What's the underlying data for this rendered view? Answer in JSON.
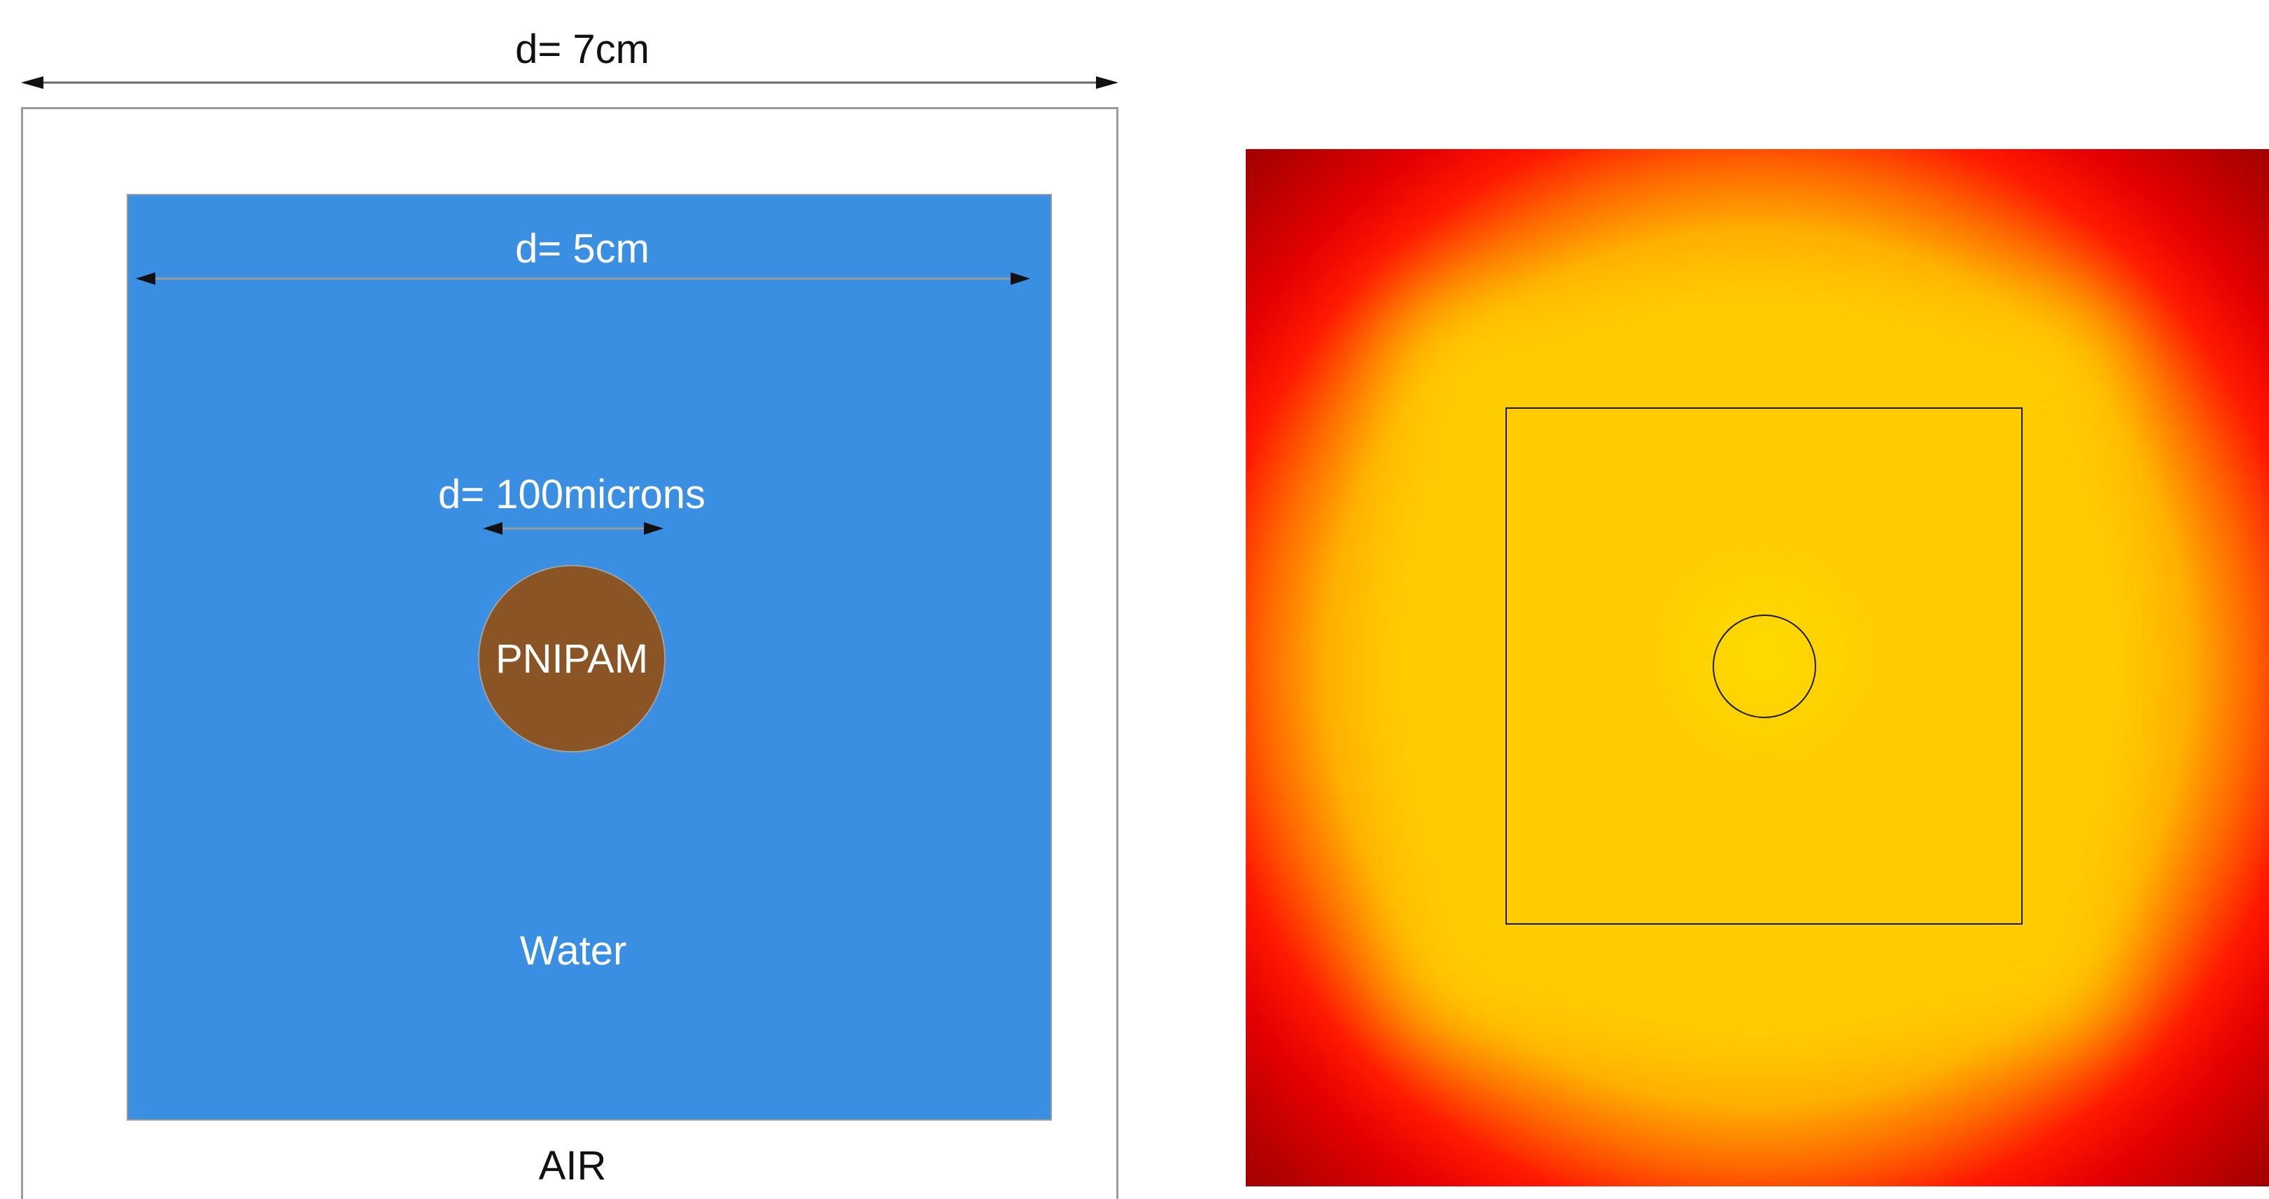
{
  "schematic": {
    "outer_domain_label": "d= 7cm",
    "outer_medium_label": "AIR",
    "water_domain_label": "d= 5cm",
    "water_medium_label": "Water",
    "particle_size_label": "d= 100microns",
    "particle_label": "PNIPAM"
  },
  "heatmap": {
    "colormap": [
      "#600000",
      "#b40000",
      "#ff1a00",
      "#ff6a00",
      "#ffae00",
      "#ffd000"
    ]
  },
  "colors": {
    "water": "#3b8fe2",
    "particle": "#8b5424",
    "air": "#ffffff"
  }
}
